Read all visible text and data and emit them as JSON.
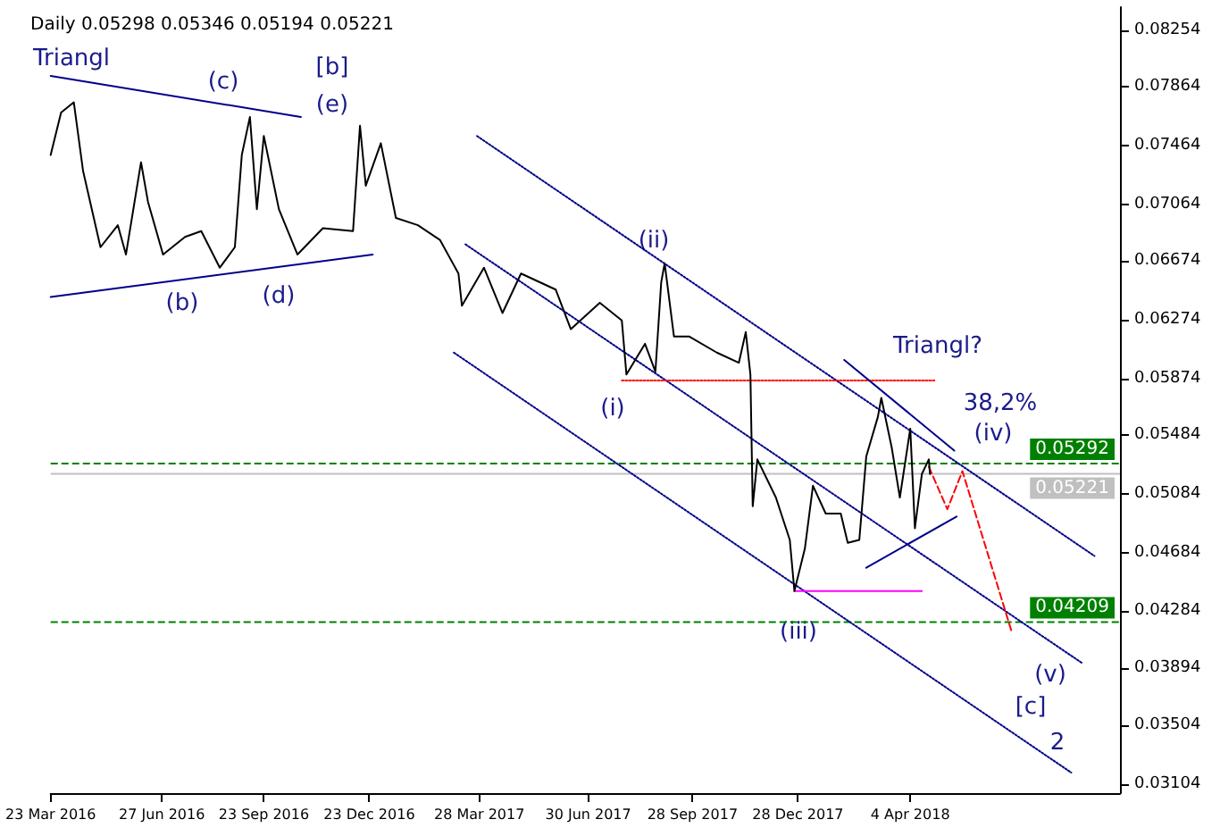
{
  "chart_data": {
    "type": "line",
    "title": "Daily 0.05298 0.05346 0.05194 0.05221",
    "marker": "none",
    "grid": false,
    "xlim": [
      "2016-03-23",
      "2018-10-02"
    ],
    "xticks": [
      {
        "value": "2016-03-23",
        "label": "23 Mar 2016"
      },
      {
        "value": "2016-06-27",
        "label": "27 Jun 2016"
      },
      {
        "value": "2016-09-23",
        "label": "23 Sep 2016"
      },
      {
        "value": "2016-12-23",
        "label": "23 Dec 2016"
      },
      {
        "value": "2017-03-28",
        "label": "28 Mar 2017"
      },
      {
        "value": "2017-06-30",
        "label": "30 Jun 2017"
      },
      {
        "value": "2017-09-28",
        "label": "28 Sep 2017"
      },
      {
        "value": "2017-12-28",
        "label": "28 Dec 2017"
      },
      {
        "value": "2018-04-04",
        "label": "4 Apr 2018"
      }
    ],
    "ylim": [
      0.0304,
      0.0841
    ],
    "yticks": [
      0.03104,
      0.03504,
      0.03894,
      0.04284,
      0.04684,
      0.05084,
      0.05484,
      0.05874,
      0.06274,
      0.06674,
      0.07064,
      0.07464,
      0.07864,
      0.08254
    ],
    "series": [
      {
        "color": "#000000",
        "line_style": "solid",
        "x": [
          "2016-03-23",
          "2016-04-01",
          "2016-04-12",
          "2016-04-20",
          "2016-05-05",
          "2016-05-20",
          "2016-05-27",
          "2016-06-09",
          "2016-06-15",
          "2016-06-28",
          "2016-07-17",
          "2016-07-31",
          "2016-08-16",
          "2016-08-29",
          "2016-09-04",
          "2016-09-11",
          "2016-09-17",
          "2016-09-23",
          "2016-10-06",
          "2016-10-22",
          "2016-11-13",
          "2016-12-09",
          "2016-12-15",
          "2016-12-20",
          "2017-01-02",
          "2017-01-15",
          "2017-02-03",
          "2017-02-22",
          "2017-03-10",
          "2017-03-13",
          "2017-04-01",
          "2017-04-17",
          "2017-05-03",
          "2017-06-02",
          "2017-06-15",
          "2017-07-10",
          "2017-07-29",
          "2017-08-02",
          "2017-08-18",
          "2017-08-27",
          "2017-09-01",
          "2017-09-04",
          "2017-09-12",
          "2017-09-25",
          "2017-10-19",
          "2017-11-07",
          "2017-11-13",
          "2017-11-17",
          "2017-11-19",
          "2017-11-23",
          "2017-12-09",
          "2017-12-21",
          "2017-12-25",
          "2018-01-03",
          "2018-01-10",
          "2018-01-21",
          "2018-02-03",
          "2018-02-09",
          "2018-02-19",
          "2018-02-25",
          "2018-03-07",
          "2018-03-10",
          "2018-03-19",
          "2018-03-26",
          "2018-04-04",
          "2018-04-08",
          "2018-04-14",
          "2018-04-20",
          "2018-04-21"
        ],
        "values": [
          0.074,
          0.0769,
          0.0776,
          0.0729,
          0.0677,
          0.0692,
          0.0672,
          0.0735,
          0.0708,
          0.0672,
          0.0684,
          0.0688,
          0.0663,
          0.0677,
          0.074,
          0.0766,
          0.0703,
          0.0753,
          0.0703,
          0.0672,
          0.069,
          0.0688,
          0.076,
          0.0719,
          0.0748,
          0.0697,
          0.0692,
          0.0682,
          0.0659,
          0.0637,
          0.0663,
          0.0632,
          0.0659,
          0.0648,
          0.0621,
          0.0639,
          0.0627,
          0.059,
          0.0611,
          0.0592,
          0.0653,
          0.0666,
          0.0616,
          0.0616,
          0.0605,
          0.0598,
          0.0619,
          0.059,
          0.05,
          0.0532,
          0.0506,
          0.0477,
          0.0442,
          0.0471,
          0.0514,
          0.0495,
          0.0495,
          0.0475,
          0.0477,
          0.0534,
          0.0561,
          0.0574,
          0.054,
          0.0506,
          0.0553,
          0.0485,
          0.0522,
          0.0532,
          0.0522
        ]
      },
      {
        "color": "#00008b",
        "line_style": "solid",
        "x": [
          "2016-03-23",
          "2016-10-25"
        ],
        "values": [
          0.0794,
          0.0766
        ]
      },
      {
        "color": "#00008b",
        "line_style": "solid",
        "x": [
          "2016-03-23",
          "2016-12-26"
        ],
        "values": [
          0.0643,
          0.0672
        ]
      },
      {
        "color": "#00008b",
        "line_style": "dotted",
        "x": [
          "2017-03-26",
          "2018-09-10"
        ],
        "values": [
          0.0753,
          0.0466
        ]
      },
      {
        "color": "#00008b",
        "line_style": "dotted",
        "x": [
          "2017-03-16",
          "2018-08-30"
        ],
        "values": [
          0.0679,
          0.0393
        ]
      },
      {
        "color": "#00008b",
        "line_style": "dotted",
        "x": [
          "2017-03-06",
          "2018-08-21"
        ],
        "values": [
          0.0605,
          0.0318
        ]
      },
      {
        "color": "#ff0000",
        "line_style": "dotted",
        "x": [
          "2017-07-29",
          "2018-04-26"
        ],
        "values": [
          0.0586,
          0.0586
        ]
      },
      {
        "color": "#ff00ff",
        "line_style": "solid",
        "x": [
          "2017-12-25",
          "2018-04-14"
        ],
        "values": [
          0.0442,
          0.0442
        ]
      },
      {
        "color": "#00008b",
        "line_style": "solid",
        "x": [
          "2018-02-06",
          "2018-05-12"
        ],
        "values": [
          0.06,
          0.0538
        ]
      },
      {
        "color": "#00008b",
        "line_style": "solid",
        "x": [
          "2018-02-25",
          "2018-05-14"
        ],
        "values": [
          0.0458,
          0.0493
        ]
      },
      {
        "color": "#ff0000",
        "line_style": "dashed",
        "x": [
          "2018-04-20",
          "2018-05-06",
          "2018-05-19",
          "2018-07-01"
        ],
        "values": [
          0.0527,
          0.0498,
          0.0524,
          0.0413
        ]
      }
    ],
    "ref_lines": [
      {
        "axis": "y",
        "value": 0.05292,
        "label": "0.05292",
        "color": "#008000",
        "line_style": "dashed"
      },
      {
        "axis": "y",
        "value": 0.05221,
        "label": "0.05221",
        "color": "#c0c0c0",
        "line_style": "solid"
      },
      {
        "axis": "y",
        "value": 0.04209,
        "label": "0.04209",
        "color": "#008000",
        "line_style": "dashed"
      }
    ],
    "annotations": [
      "Triangl",
      "(c)",
      "[b]",
      "(e)",
      "(b)",
      "(d)",
      "(ii)",
      "(i)",
      "(iii)",
      "Triangl?",
      "38,2%",
      "(iv)",
      "(v)",
      "[c]",
      "2"
    ]
  }
}
